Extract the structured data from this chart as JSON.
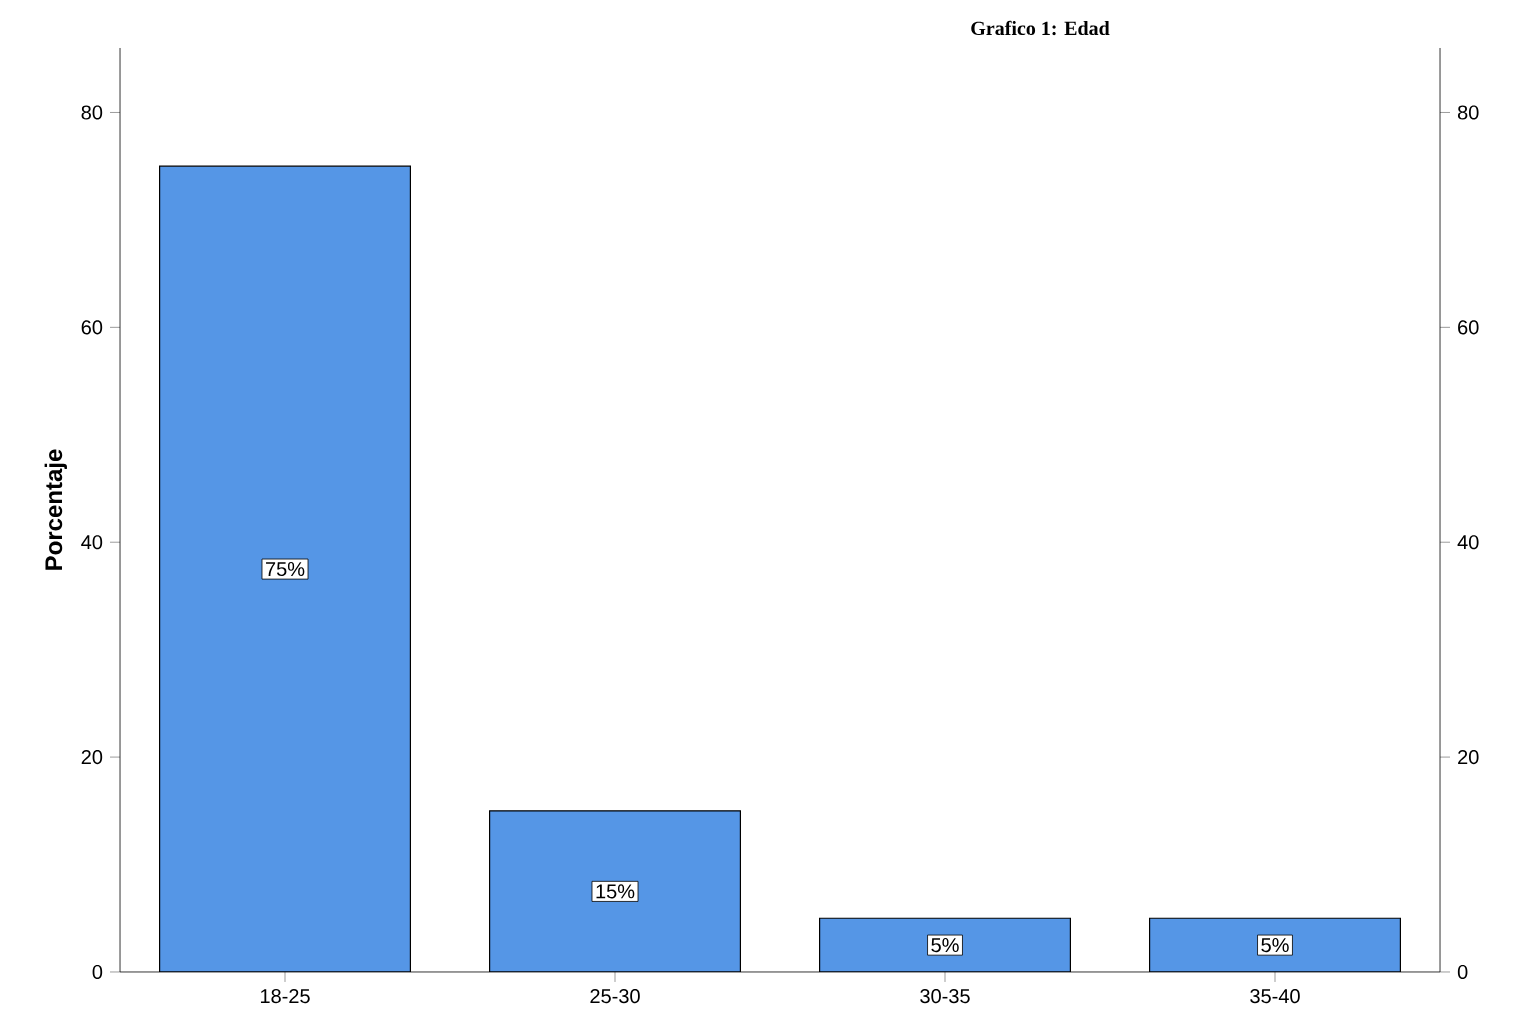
{
  "chart_data": {
    "type": "bar",
    "title": "Grafico 1: Edad",
    "ylabel": "Porcentaje",
    "categories": [
      "18-25",
      "25-30",
      "30-35",
      "35-40"
    ],
    "values": [
      75,
      15,
      5,
      5
    ],
    "value_labels": [
      "75%",
      "15%",
      "5%",
      "5%"
    ],
    "color": "#5596e6",
    "ylim": [
      0,
      86
    ],
    "yticks": [
      0,
      20,
      40,
      60,
      80
    ],
    "y2lim": [
      0,
      86
    ],
    "y2ticks": [
      0,
      20,
      40,
      60,
      80
    ],
    "grid": false
  }
}
